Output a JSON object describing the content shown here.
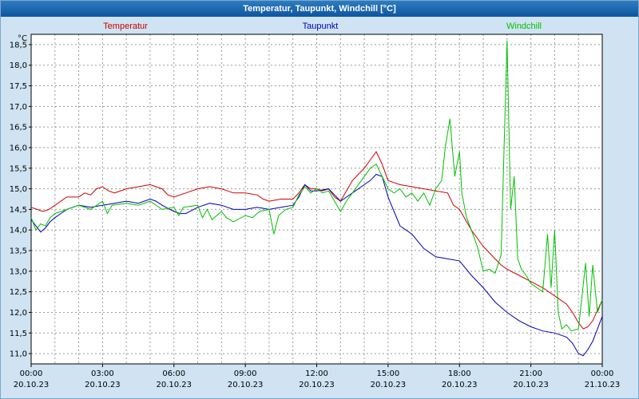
{
  "window": {
    "title": "Temperatur, Taupunkt, Windchill [°C]"
  },
  "chart_data": {
    "type": "line",
    "title": "Temperatur, Taupunkt, Windchill [°C]",
    "ylabel": "°C",
    "xlabel": "",
    "ylim": [
      10.75,
      18.75
    ],
    "yticks": [
      18.5,
      18.0,
      17.5,
      17.0,
      16.5,
      16.0,
      15.5,
      15.0,
      14.5,
      14.0,
      13.5,
      13.0,
      12.5,
      12.0,
      11.5,
      11.0
    ],
    "xlim": [
      0,
      24
    ],
    "x_unit": "hours",
    "grid": "dotted hourly vertical and 0.5°C horizontal",
    "grid_color": "#9a9a9a",
    "axis_color": "#000000",
    "plot_bg": "#ffffff",
    "background": "#cfe3f2",
    "legend_position": "top",
    "xticks": [
      {
        "h": 0,
        "time": "00:00",
        "date": "20.10.23"
      },
      {
        "h": 3,
        "time": "03:00",
        "date": "20.10.23"
      },
      {
        "h": 6,
        "time": "06:00",
        "date": "20.10.23"
      },
      {
        "h": 9,
        "time": "09:00",
        "date": "20.10.23"
      },
      {
        "h": 12,
        "time": "12:00",
        "date": "20.10.23"
      },
      {
        "h": 15,
        "time": "15:00",
        "date": "20.10.23"
      },
      {
        "h": 18,
        "time": "18:00",
        "date": "20.10.23"
      },
      {
        "h": 21,
        "time": "21:00",
        "date": "20.10.23"
      },
      {
        "h": 24,
        "time": "00:00",
        "date": "21.10.23"
      }
    ],
    "series": [
      {
        "name": "Temperatur",
        "color": "#cc0000",
        "points": [
          [
            0,
            14.55
          ],
          [
            0.25,
            14.5
          ],
          [
            0.5,
            14.45
          ],
          [
            0.75,
            14.5
          ],
          [
            1,
            14.6
          ],
          [
            1.5,
            14.8
          ],
          [
            2,
            14.8
          ],
          [
            2.25,
            14.9
          ],
          [
            2.5,
            14.85
          ],
          [
            2.75,
            15.0
          ],
          [
            3,
            15.05
          ],
          [
            3.25,
            14.95
          ],
          [
            3.5,
            14.9
          ],
          [
            4,
            15.0
          ],
          [
            4.5,
            15.05
          ],
          [
            5,
            15.1
          ],
          [
            5.25,
            15.05
          ],
          [
            5.5,
            15.0
          ],
          [
            5.75,
            14.85
          ],
          [
            6,
            14.8
          ],
          [
            6.5,
            14.9
          ],
          [
            7,
            15.0
          ],
          [
            7.5,
            15.05
          ],
          [
            8,
            15.0
          ],
          [
            8.25,
            14.95
          ],
          [
            8.5,
            14.9
          ],
          [
            9,
            14.9
          ],
          [
            9.5,
            14.85
          ],
          [
            9.75,
            14.75
          ],
          [
            10,
            14.7
          ],
          [
            10.5,
            14.75
          ],
          [
            11,
            14.75
          ],
          [
            11.25,
            14.9
          ],
          [
            11.5,
            15.1
          ],
          [
            11.75,
            15.0
          ],
          [
            12,
            15.0
          ],
          [
            12.25,
            14.95
          ],
          [
            12.5,
            15.0
          ],
          [
            12.75,
            14.8
          ],
          [
            13,
            14.7
          ],
          [
            13.25,
            14.95
          ],
          [
            13.5,
            15.2
          ],
          [
            13.75,
            15.35
          ],
          [
            14,
            15.5
          ],
          [
            14.25,
            15.7
          ],
          [
            14.5,
            15.9
          ],
          [
            14.75,
            15.6
          ],
          [
            15,
            15.2
          ],
          [
            15.25,
            15.15
          ],
          [
            15.5,
            15.1
          ],
          [
            16,
            15.05
          ],
          [
            16.5,
            15.0
          ],
          [
            17,
            14.95
          ],
          [
            17.5,
            14.9
          ],
          [
            17.75,
            14.6
          ],
          [
            18,
            14.5
          ],
          [
            18.25,
            14.25
          ],
          [
            18.5,
            14.0
          ],
          [
            18.75,
            13.8
          ],
          [
            19,
            13.6
          ],
          [
            19.25,
            13.45
          ],
          [
            19.5,
            13.3
          ],
          [
            19.75,
            13.15
          ],
          [
            20,
            13.05
          ],
          [
            20.5,
            12.9
          ],
          [
            21,
            12.75
          ],
          [
            21.5,
            12.6
          ],
          [
            22,
            12.4
          ],
          [
            22.5,
            12.2
          ],
          [
            22.75,
            12.0
          ],
          [
            23,
            11.75
          ],
          [
            23.2,
            11.6
          ],
          [
            23.4,
            11.65
          ],
          [
            23.6,
            11.8
          ],
          [
            23.8,
            12.05
          ],
          [
            24,
            12.3
          ]
        ]
      },
      {
        "name": "Taupunkt",
        "color": "#0000b4",
        "points": [
          [
            0,
            14.25
          ],
          [
            0.2,
            14.1
          ],
          [
            0.4,
            13.95
          ],
          [
            0.6,
            14.05
          ],
          [
            0.8,
            14.2
          ],
          [
            1,
            14.3
          ],
          [
            1.25,
            14.4
          ],
          [
            1.5,
            14.5
          ],
          [
            2,
            14.6
          ],
          [
            2.5,
            14.55
          ],
          [
            3,
            14.6
          ],
          [
            3.5,
            14.65
          ],
          [
            4,
            14.7
          ],
          [
            4.5,
            14.65
          ],
          [
            5,
            14.75
          ],
          [
            5.25,
            14.7
          ],
          [
            5.5,
            14.6
          ],
          [
            6,
            14.45
          ],
          [
            6.25,
            14.4
          ],
          [
            6.5,
            14.4
          ],
          [
            7,
            14.55
          ],
          [
            7.5,
            14.65
          ],
          [
            8,
            14.6
          ],
          [
            8.5,
            14.5
          ],
          [
            9,
            14.5
          ],
          [
            9.5,
            14.55
          ],
          [
            10,
            14.5
          ],
          [
            10.5,
            14.55
          ],
          [
            11,
            14.6
          ],
          [
            11.25,
            14.8
          ],
          [
            11.5,
            15.1
          ],
          [
            11.75,
            14.95
          ],
          [
            12,
            14.95
          ],
          [
            12.5,
            15.0
          ],
          [
            12.75,
            14.85
          ],
          [
            13,
            14.7
          ],
          [
            13.5,
            14.9
          ],
          [
            14,
            15.1
          ],
          [
            14.25,
            15.2
          ],
          [
            14.5,
            15.35
          ],
          [
            14.75,
            15.3
          ],
          [
            15,
            14.8
          ],
          [
            15.25,
            14.45
          ],
          [
            15.5,
            14.1
          ],
          [
            15.75,
            14.0
          ],
          [
            16,
            13.9
          ],
          [
            16.5,
            13.55
          ],
          [
            17,
            13.35
          ],
          [
            17.5,
            13.3
          ],
          [
            18,
            13.25
          ],
          [
            18.5,
            12.9
          ],
          [
            19,
            12.6
          ],
          [
            19.5,
            12.25
          ],
          [
            20,
            12.0
          ],
          [
            20.5,
            11.8
          ],
          [
            21,
            11.65
          ],
          [
            21.5,
            11.55
          ],
          [
            22,
            11.5
          ],
          [
            22.5,
            11.4
          ],
          [
            22.75,
            11.25
          ],
          [
            23,
            11.0
          ],
          [
            23.2,
            10.95
          ],
          [
            23.4,
            11.1
          ],
          [
            23.6,
            11.3
          ],
          [
            23.8,
            11.6
          ],
          [
            24,
            11.9
          ]
        ]
      },
      {
        "name": "Windchill",
        "color": "#00c000",
        "points": [
          [
            0,
            14.3
          ],
          [
            0.2,
            14.0
          ],
          [
            0.4,
            14.15
          ],
          [
            0.6,
            14.1
          ],
          [
            0.8,
            14.3
          ],
          [
            1,
            14.4
          ],
          [
            1.5,
            14.5
          ],
          [
            2,
            14.6
          ],
          [
            2.5,
            14.5
          ],
          [
            3,
            14.7
          ],
          [
            3.2,
            14.4
          ],
          [
            3.4,
            14.6
          ],
          [
            4,
            14.65
          ],
          [
            4.5,
            14.6
          ],
          [
            5,
            14.7
          ],
          [
            5.5,
            14.5
          ],
          [
            6,
            14.55
          ],
          [
            6.2,
            14.35
          ],
          [
            6.4,
            14.55
          ],
          [
            7,
            14.6
          ],
          [
            7.2,
            14.3
          ],
          [
            7.4,
            14.5
          ],
          [
            7.6,
            14.25
          ],
          [
            8,
            14.45
          ],
          [
            8.2,
            14.3
          ],
          [
            8.5,
            14.2
          ],
          [
            9,
            14.35
          ],
          [
            9.3,
            14.3
          ],
          [
            9.6,
            14.45
          ],
          [
            10,
            14.5
          ],
          [
            10.2,
            13.9
          ],
          [
            10.4,
            14.35
          ],
          [
            10.7,
            14.5
          ],
          [
            11,
            14.55
          ],
          [
            11.25,
            14.85
          ],
          [
            11.5,
            15.05
          ],
          [
            11.75,
            14.9
          ],
          [
            12,
            15.0
          ],
          [
            12.25,
            14.9
          ],
          [
            12.5,
            14.95
          ],
          [
            12.75,
            14.7
          ],
          [
            13,
            14.45
          ],
          [
            13.25,
            14.7
          ],
          [
            13.5,
            14.9
          ],
          [
            14,
            15.3
          ],
          [
            14.25,
            15.5
          ],
          [
            14.5,
            15.6
          ],
          [
            14.75,
            15.3
          ],
          [
            15,
            15.0
          ],
          [
            15.25,
            14.9
          ],
          [
            15.5,
            15.0
          ],
          [
            15.75,
            14.8
          ],
          [
            16,
            14.9
          ],
          [
            16.25,
            14.7
          ],
          [
            16.5,
            14.9
          ],
          [
            16.75,
            14.6
          ],
          [
            17,
            15.0
          ],
          [
            17.25,
            15.2
          ],
          [
            17.4,
            16.0
          ],
          [
            17.6,
            16.7
          ],
          [
            17.8,
            15.3
          ],
          [
            18,
            15.9
          ],
          [
            18.1,
            14.9
          ],
          [
            18.3,
            14.3
          ],
          [
            18.5,
            14.0
          ],
          [
            18.75,
            13.6
          ],
          [
            19,
            13.0
          ],
          [
            19.25,
            13.05
          ],
          [
            19.5,
            12.95
          ],
          [
            19.75,
            13.4
          ],
          [
            20,
            18.6
          ],
          [
            20.15,
            14.5
          ],
          [
            20.3,
            15.3
          ],
          [
            20.45,
            13.3
          ],
          [
            20.6,
            13.05
          ],
          [
            20.8,
            12.9
          ],
          [
            21,
            12.7
          ],
          [
            21.25,
            12.6
          ],
          [
            21.5,
            12.5
          ],
          [
            21.7,
            13.9
          ],
          [
            21.85,
            12.6
          ],
          [
            22,
            14.0
          ],
          [
            22.15,
            12.0
          ],
          [
            22.3,
            11.6
          ],
          [
            22.5,
            11.7
          ],
          [
            22.7,
            11.55
          ],
          [
            23,
            11.6
          ],
          [
            23.15,
            12.4
          ],
          [
            23.3,
            13.2
          ],
          [
            23.45,
            11.9
          ],
          [
            23.6,
            13.15
          ],
          [
            23.8,
            12.0
          ],
          [
            24,
            12.3
          ]
        ]
      }
    ]
  }
}
